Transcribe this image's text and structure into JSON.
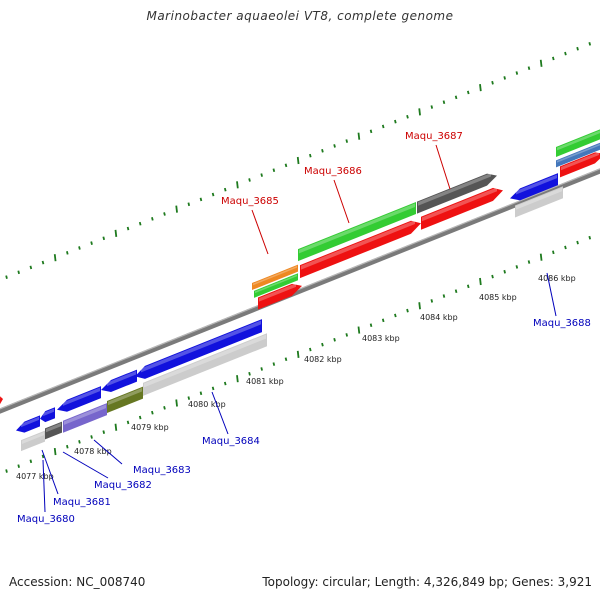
{
  "title": "Marinobacter aquaeolei VT8, complete genome",
  "footer": {
    "accession": "Accession: NC_008740",
    "summary": "Topology: circular; Length: 4,326,849 bp; Genes: 3,921"
  },
  "colors": {
    "backbone": "#7a7a7a",
    "tick": "#1e7a1e",
    "label_forward": "#cc0000",
    "label_reverse": "#0000bb",
    "red": "#ee1111",
    "green": "#33cc33",
    "orange": "#ee8822",
    "dark_gray": "#555555",
    "light_gray": "#cccccc",
    "blue": "#1111dd",
    "purple": "#7766cc",
    "olive": "#667722",
    "steel_blue": "#4477bb"
  },
  "scale_labels": [
    "4077 kbp",
    "4078 kbp",
    "4079 kbp",
    "4080 kbp",
    "4081 kbp",
    "4082 kbp",
    "4083 kbp",
    "4084 kbp",
    "4085 kbp",
    "4086 kbp"
  ],
  "gene_labels": {
    "forward": [
      "Maqu_3685",
      "Maqu_3686",
      "Maqu_3687"
    ],
    "reverse": [
      "Maqu_3680",
      "Maqu_3681",
      "Maqu_3682",
      "Maqu_3683",
      "Maqu_3684",
      "Maqu_3688"
    ]
  }
}
